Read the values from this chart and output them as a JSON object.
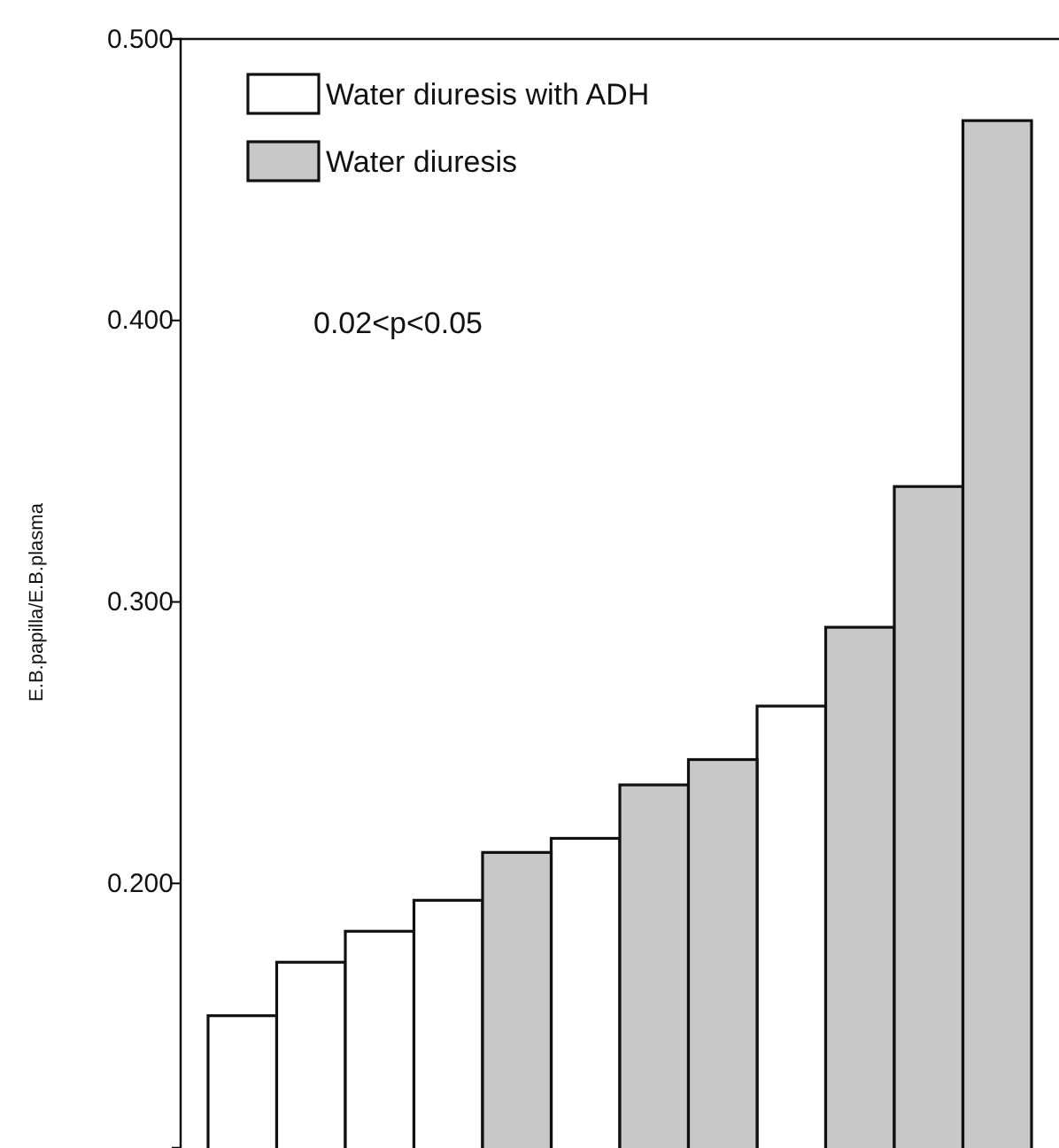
{
  "chart_data": {
    "type": "bar",
    "ylabel": "E.B.papilla/E.B.plasma",
    "categories": [
      null,
      null,
      null,
      null,
      null,
      null,
      null,
      null,
      null,
      null,
      null,
      null
    ],
    "series": [
      {
        "name": "Water diuresis with ADH",
        "color": "#ffffff",
        "values": [
          0.153,
          0.172,
          0.183,
          0.194,
          null,
          0.216,
          null,
          null,
          0.263,
          null,
          null,
          null
        ]
      },
      {
        "name": "Water diuresis",
        "color": "#c8c8c8",
        "values": [
          null,
          null,
          null,
          null,
          0.211,
          null,
          0.235,
          0.244,
          null,
          0.291,
          0.341,
          0.471
        ]
      }
    ],
    "ylim": [
      0.106,
      0.5
    ],
    "yticks": [
      {
        "value": 0.2,
        "label": "0.200"
      },
      {
        "value": 0.3,
        "label": "0.300"
      },
      {
        "value": 0.4,
        "label": "0.400"
      },
      {
        "value": 0.5,
        "label": "0.500"
      }
    ],
    "tick_labels": "y",
    "legend": "top left",
    "annotations": [
      "0.02<p<0.05"
    ]
  }
}
